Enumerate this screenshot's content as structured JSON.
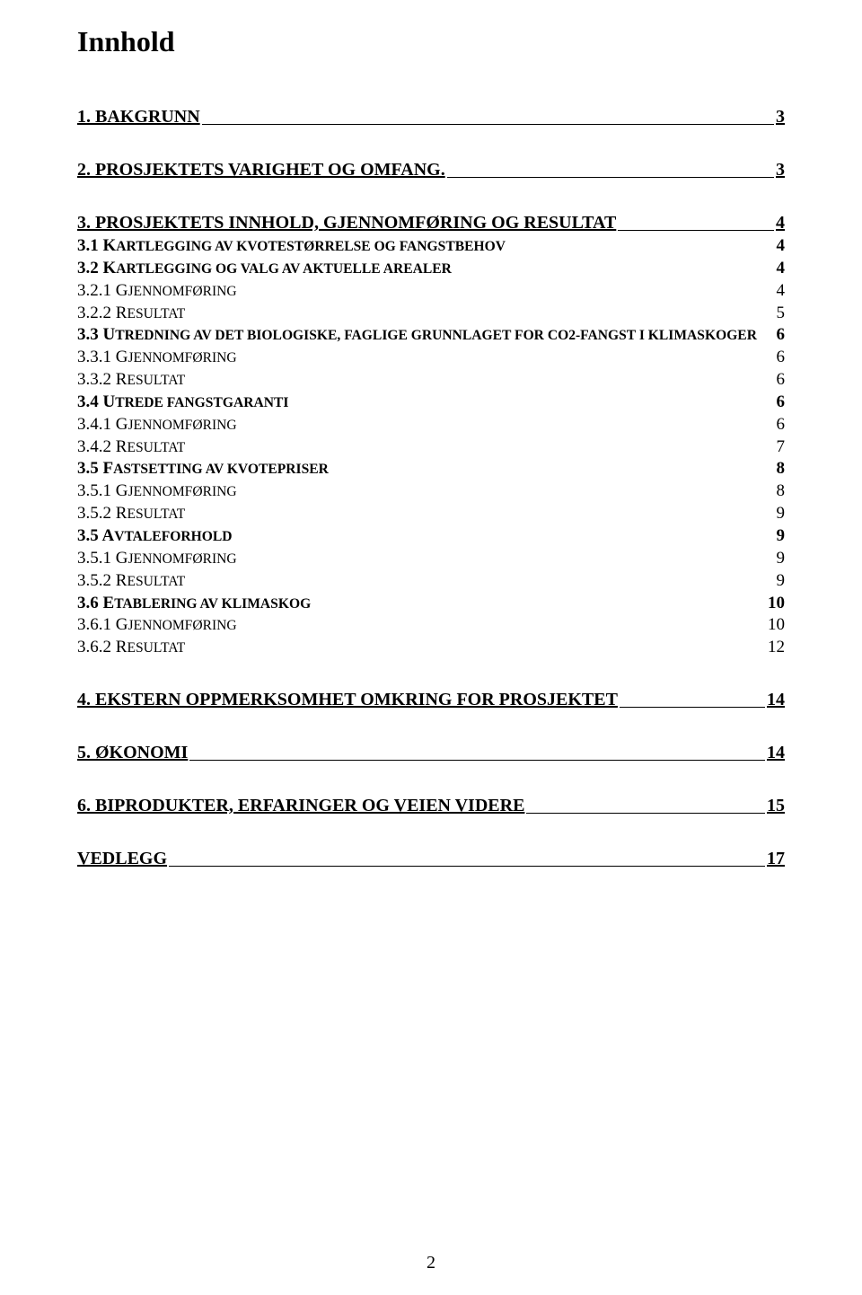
{
  "title": "Innhold",
  "page_number": "2",
  "toc": [
    {
      "level": "section",
      "first": true,
      "label": "1. BAKGRUNN",
      "page": "3"
    },
    {
      "level": "section",
      "label": "2. PROSJEKTETS VARIGHET OG OMFANG.",
      "page": "3"
    },
    {
      "level": "section",
      "label": "3. PROSJEKTETS INNHOLD, GJENNOMFØRING OG RESULTAT",
      "page": "4"
    },
    {
      "level": "subsection",
      "num": "3.1 K",
      "rest": "ARTLEGGING AV KVOTESTØRRELSE OG FANGSTBEHOV",
      "page": "4"
    },
    {
      "level": "subsection",
      "num": "3.2 K",
      "rest": "ARTLEGGING OG VALG AV AKTUELLE AREALER",
      "page": "4"
    },
    {
      "level": "item",
      "num": "3.2.1 G",
      "rest": "JENNOMFØRING",
      "page": "4"
    },
    {
      "level": "item",
      "num": "3.2.2 R",
      "rest": "ESULTAT",
      "page": "5"
    },
    {
      "level": "subsection",
      "num": "3.3 U",
      "rest": "TREDNING AV DET BIOLOGISKE, FAGLIGE GRUNNLAGET FOR CO2-FANGST I KLIMASKOGER",
      "page": "6"
    },
    {
      "level": "item",
      "num": "3.3.1 G",
      "rest": "JENNOMFØRING",
      "page": "6"
    },
    {
      "level": "item",
      "num": "3.3.2 R",
      "rest": "ESULTAT",
      "page": "6"
    },
    {
      "level": "subsection",
      "num": "3.4 U",
      "rest": "TREDE FANGSTGARANTI",
      "page": "6"
    },
    {
      "level": "item",
      "num": "3.4.1 G",
      "rest": "JENNOMFØRING",
      "page": "6"
    },
    {
      "level": "item",
      "num": "3.4.2 R",
      "rest": "ESULTAT",
      "page": "7"
    },
    {
      "level": "subsection",
      "num": "3.5 F",
      "rest": "ASTSETTING AV KVOTEPRISER",
      "page": "8"
    },
    {
      "level": "item",
      "num": "3.5.1 G",
      "rest": "JENNOMFØRING",
      "page": "8"
    },
    {
      "level": "item",
      "num": "3.5.2 R",
      "rest": "ESULTAT",
      "page": "9"
    },
    {
      "level": "subsection",
      "num": "3.5 A",
      "rest": "VTALEFORHOLD",
      "page": "9"
    },
    {
      "level": "item",
      "num": "3.5.1 G",
      "rest": "JENNOMFØRING",
      "page": "9"
    },
    {
      "level": "item",
      "num": "3.5.2 R",
      "rest": "ESULTAT",
      "page": "9"
    },
    {
      "level": "subsection",
      "num": "3.6 E",
      "rest": "TABLERING AV KLIMASKOG",
      "page": "10"
    },
    {
      "level": "item",
      "num": "3.6.1 G",
      "rest": "JENNOMFØRING",
      "page": "10"
    },
    {
      "level": "item",
      "num": "3.6.2 R",
      "rest": "ESULTAT",
      "page": "12"
    },
    {
      "level": "section",
      "label": "4. EKSTERN OPPMERKSOMHET OMKRING FOR PROSJEKTET",
      "page": "14"
    },
    {
      "level": "section",
      "label": "5. ØKONOMI",
      "page": "14"
    },
    {
      "level": "section",
      "label": "6. BIPRODUKTER, ERFARINGER OG VEIEN VIDERE",
      "page": "15"
    },
    {
      "level": "section",
      "label": "VEDLEGG",
      "page": "17"
    }
  ]
}
